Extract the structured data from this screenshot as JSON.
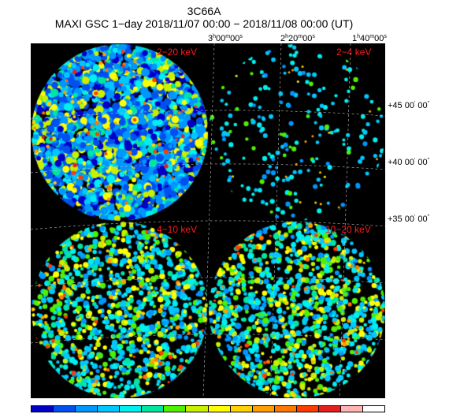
{
  "title": {
    "object": "3C66A",
    "observation": "MAXI GSC 1−day 2018/11/07 00:00 − 2018/11/08 00:00 (UT)"
  },
  "ra_labels": [
    {
      "h": "3",
      "m": "00",
      "s": "00"
    },
    {
      "h": "2",
      "m": "20",
      "s": "00"
    },
    {
      "h": "1",
      "m": "40",
      "s": "00"
    }
  ],
  "dec_labels": [
    {
      "d": "+45",
      "m": "00",
      "s": "00"
    },
    {
      "d": "+40",
      "m": "00",
      "s": "00"
    },
    {
      "d": "+35",
      "m": "00",
      "s": "00"
    }
  ],
  "panels": [
    {
      "label": "2−20 keV",
      "style": "dense"
    },
    {
      "label": "2−4 keV",
      "style": "sparse"
    },
    {
      "label": "4−10 keV",
      "style": "medium"
    },
    {
      "label": "10−20 keV",
      "style": "medium"
    }
  ],
  "colorbar": [
    "#0000c8",
    "#0050f0",
    "#0096ff",
    "#00c8ff",
    "#00f0f0",
    "#00e6a0",
    "#50f000",
    "#c8f000",
    "#ffff00",
    "#ffd200",
    "#ffa000",
    "#ff7800",
    "#ff3c00",
    "#e61e1e",
    "#ffb4b4",
    "#ffffff"
  ]
}
